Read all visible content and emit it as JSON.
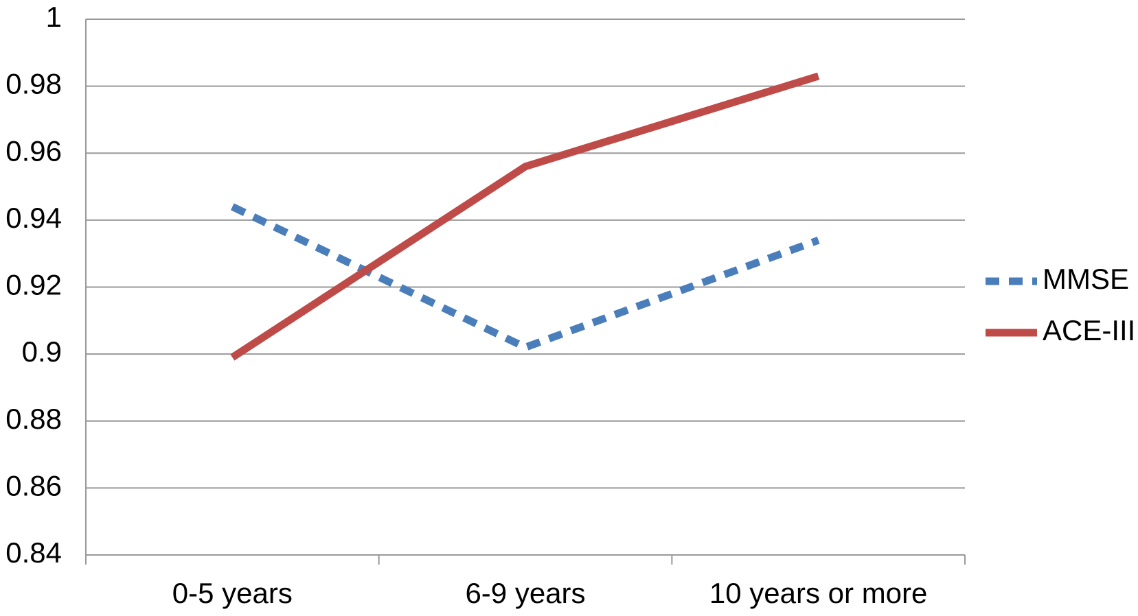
{
  "chart_data": {
    "type": "line",
    "categories": [
      "0-5 years",
      "6-9 years",
      "10 years or more"
    ],
    "series": [
      {
        "name": "MMSE",
        "color": "#4a7ebb",
        "dashed": true,
        "values": [
          0.944,
          0.902,
          0.934
        ]
      },
      {
        "name": "ACE-III",
        "color": "#be4b48",
        "dashed": false,
        "values": [
          0.899,
          0.956,
          0.983
        ]
      }
    ],
    "ylim": [
      0.84,
      1
    ],
    "yticks": [
      0.84,
      0.86,
      0.88,
      0.9,
      0.92,
      0.94,
      0.96,
      0.98,
      1
    ],
    "grid": true,
    "legend": "right"
  }
}
